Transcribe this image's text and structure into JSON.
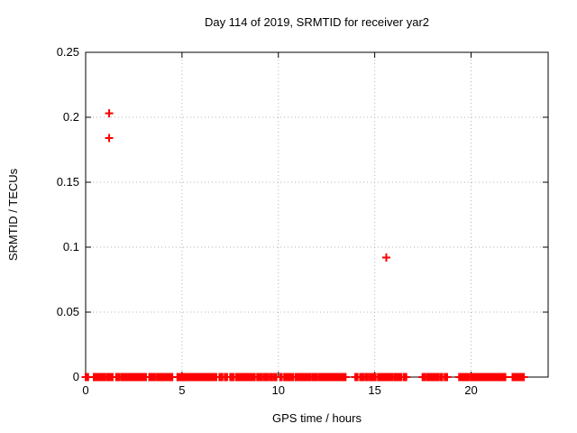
{
  "chart_data": {
    "type": "scatter",
    "title": "Day 114 of 2019, SRMTID for receiver yar2",
    "xlabel": "GPS time / hours",
    "ylabel": "SRMTID / TECUs",
    "xlim": [
      0,
      24
    ],
    "ylim": [
      0,
      0.25
    ],
    "xticks": [
      0,
      5,
      10,
      15,
      20
    ],
    "xtick_labels": [
      "0",
      "5",
      "10",
      "15",
      "20"
    ],
    "yticks": [
      0,
      0.05,
      0.1,
      0.15,
      0.2,
      0.25
    ],
    "ytick_labels": [
      "0",
      "0.05",
      "0.1",
      "0.15",
      "0.2",
      "0.25"
    ],
    "grid": true,
    "legend_position": "none",
    "marker_shape": "plus",
    "marker_color": "#ff0000",
    "grid_color": "#b4b4b4",
    "border_color": "#000000",
    "series": [
      {
        "name": "SRMTID",
        "outlier_points": [
          {
            "x": 1.22,
            "y": 0.203
          },
          {
            "x": 1.22,
            "y": 0.184
          },
          {
            "x": 15.6,
            "y": 0.092
          }
        ],
        "baseline_value": 0,
        "baseline_segments_hours": [
          [
            0.0,
            0.13
          ],
          [
            0.42,
            0.55
          ],
          [
            0.64,
            1.0
          ],
          [
            1.1,
            1.4
          ],
          [
            1.58,
            1.76
          ],
          [
            1.86,
            2.64
          ],
          [
            2.73,
            3.13
          ],
          [
            3.3,
            3.6
          ],
          [
            3.7,
            4.16
          ],
          [
            4.22,
            4.5
          ],
          [
            4.76,
            4.91
          ],
          [
            4.97,
            5.25
          ],
          [
            5.32,
            5.44
          ],
          [
            5.5,
            5.63
          ],
          [
            5.72,
            5.88
          ],
          [
            5.91,
            6.53
          ],
          [
            6.6,
            6.78
          ],
          [
            6.94,
            7.1
          ],
          [
            7.22,
            7.34
          ],
          [
            7.5,
            7.69
          ],
          [
            7.81,
            8.25
          ],
          [
            8.34,
            8.47
          ],
          [
            8.53,
            8.78
          ],
          [
            8.9,
            9.15
          ],
          [
            9.25,
            9.46
          ],
          [
            9.56,
            9.68
          ],
          [
            9.78,
            9.9
          ],
          [
            10.09,
            10.18
          ],
          [
            10.3,
            10.78
          ],
          [
            10.9,
            11.34
          ],
          [
            11.43,
            11.68
          ],
          [
            11.78,
            12.02
          ],
          [
            12.12,
            12.43
          ],
          [
            12.49,
            12.61
          ],
          [
            12.68,
            12.8
          ],
          [
            12.86,
            12.99
          ],
          [
            13.08,
            13.21
          ],
          [
            13.3,
            13.49
          ],
          [
            13.99,
            14.11
          ],
          [
            14.24,
            14.42
          ],
          [
            14.52,
            14.64
          ],
          [
            14.74,
            14.8
          ],
          [
            14.89,
            15.05
          ],
          [
            15.17,
            15.61
          ],
          [
            15.7,
            15.92
          ],
          [
            16.02,
            16.14
          ],
          [
            16.23,
            16.39
          ],
          [
            16.51,
            16.64
          ],
          [
            17.48,
            17.6
          ],
          [
            17.7,
            17.95
          ],
          [
            18.01,
            18.32
          ],
          [
            18.42,
            18.51
          ],
          [
            18.63,
            18.76
          ],
          [
            19.38,
            19.51
          ],
          [
            19.57,
            19.88
          ],
          [
            19.98,
            20.23
          ],
          [
            20.32,
            20.45
          ],
          [
            20.51,
            21.15
          ],
          [
            21.22,
            21.41
          ],
          [
            21.5,
            21.6
          ],
          [
            21.65,
            21.78
          ],
          [
            22.15,
            22.22
          ],
          [
            22.28,
            22.34
          ],
          [
            22.4,
            22.47
          ],
          [
            22.53,
            22.74
          ]
        ],
        "baseline_point_spacing_hours": 0.08
      }
    ]
  }
}
